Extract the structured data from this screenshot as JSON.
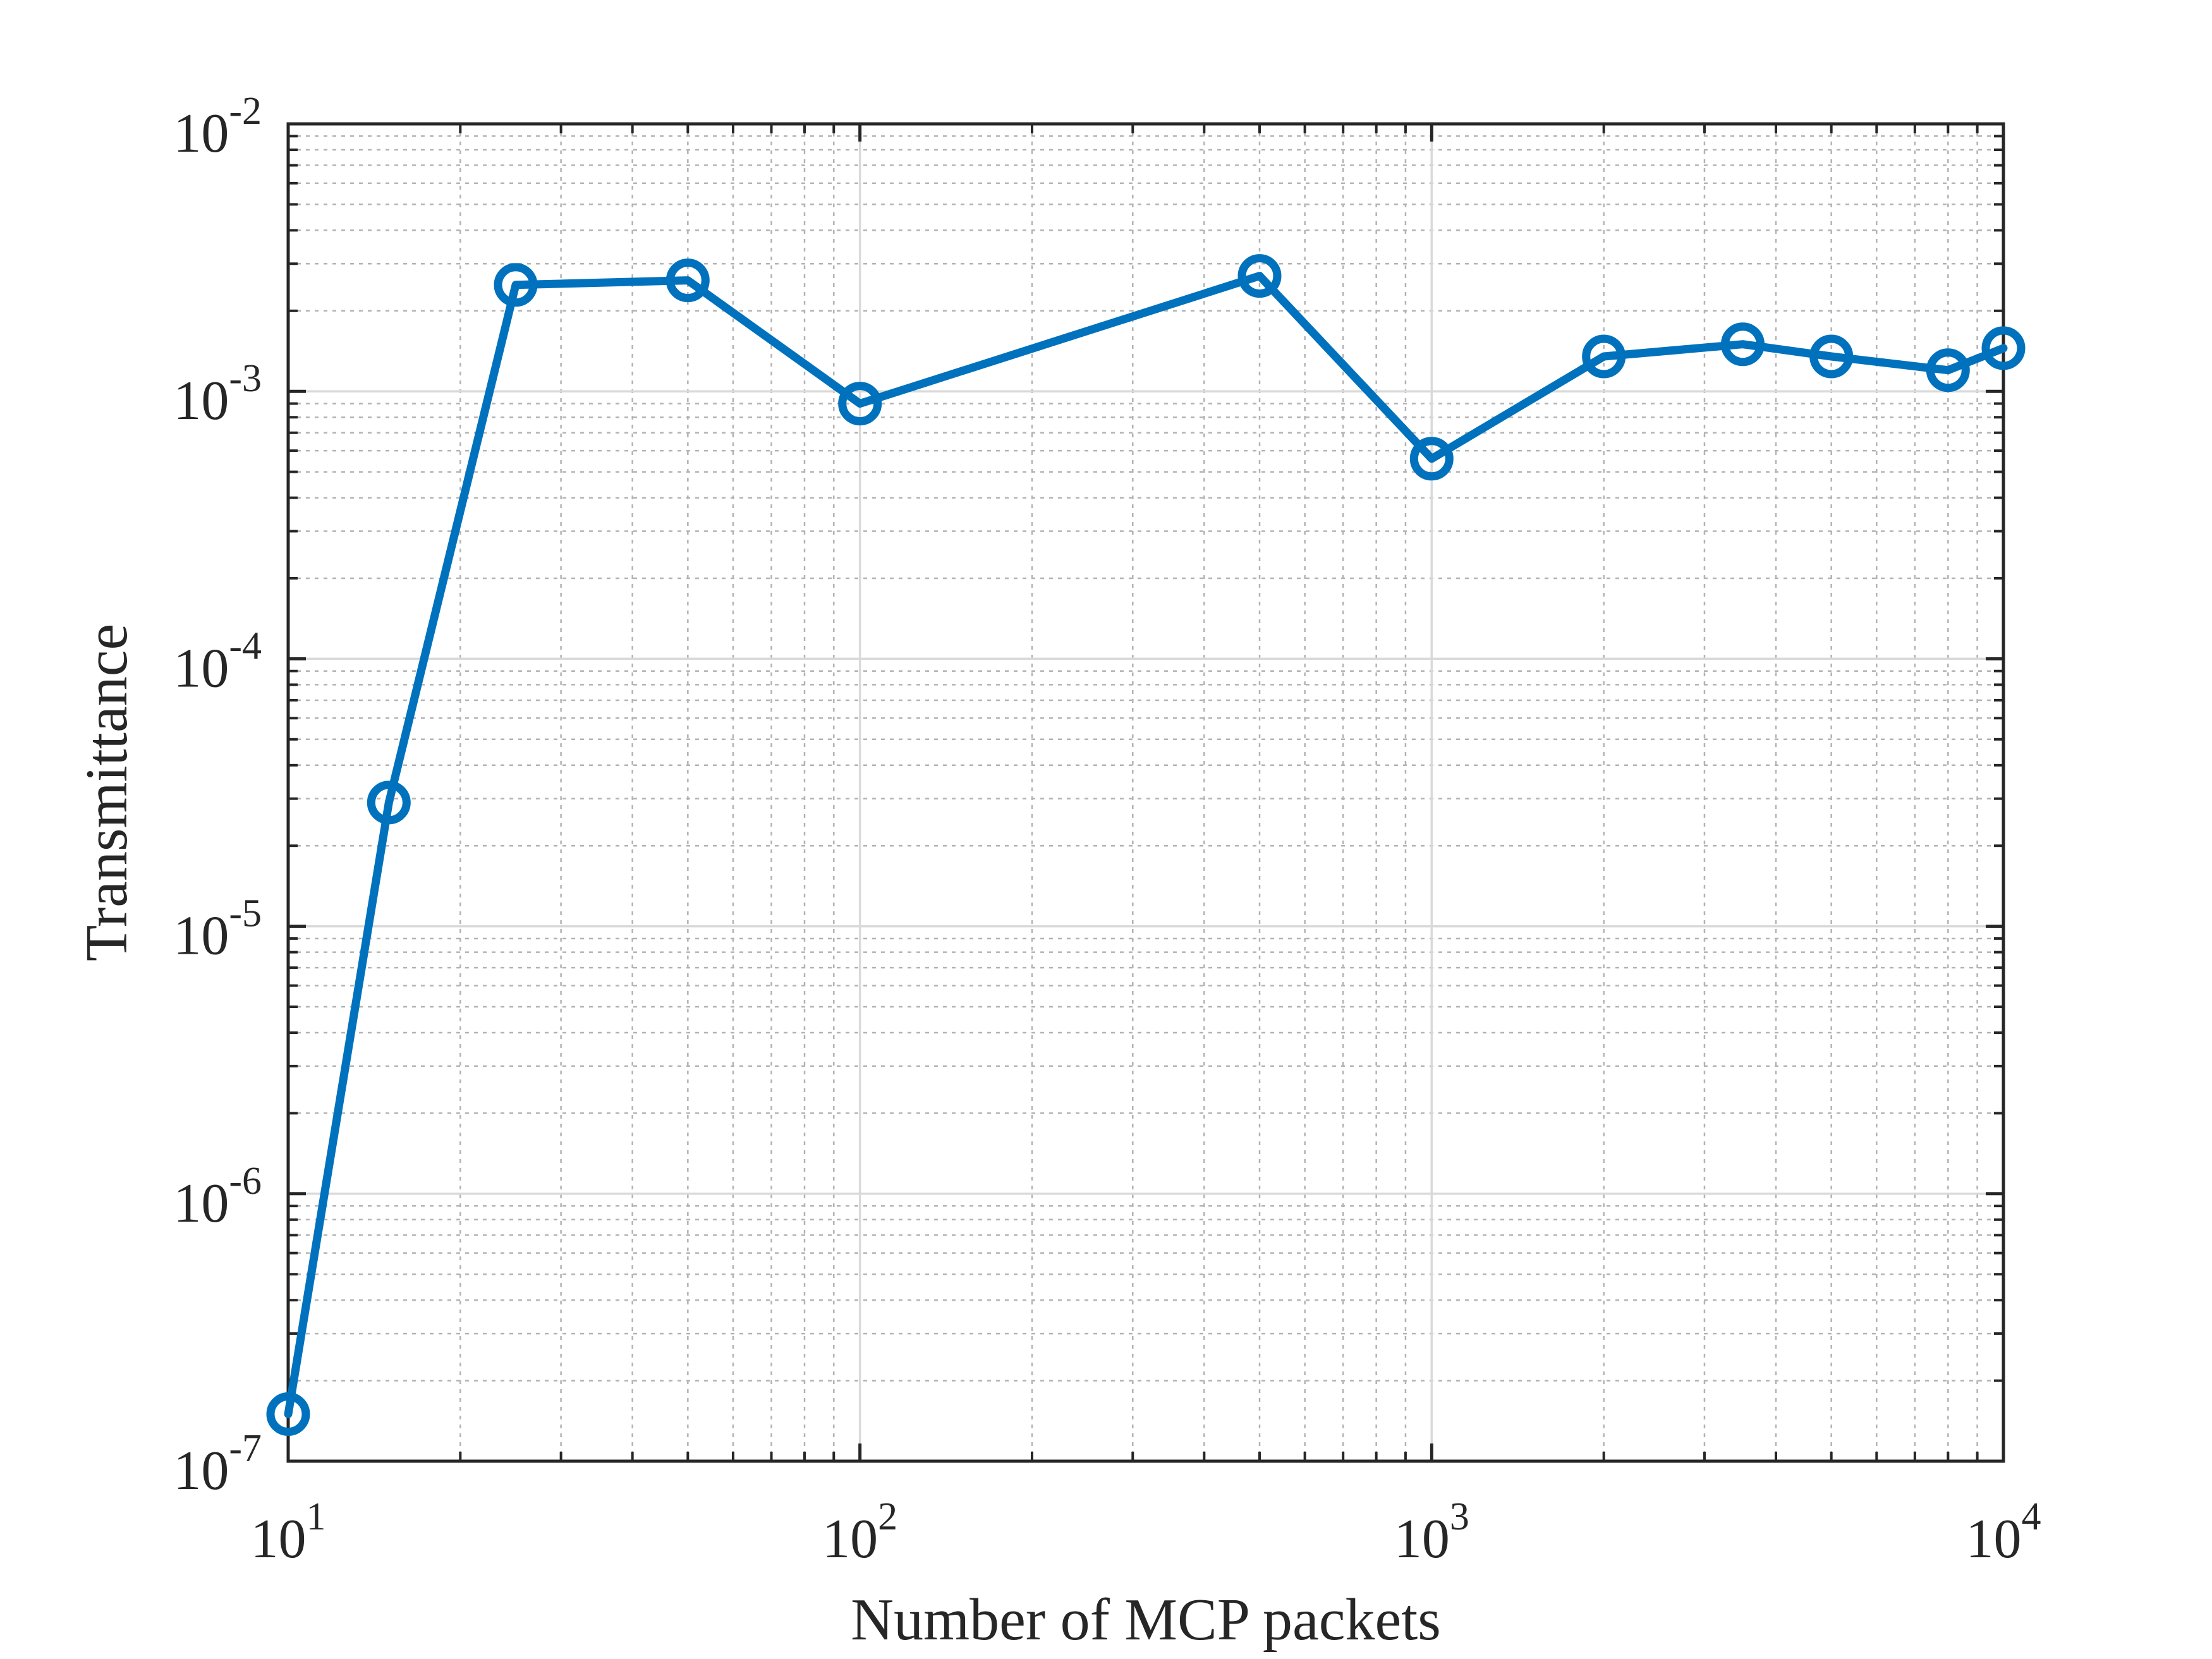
{
  "chart_data": {
    "type": "line",
    "xlabel": "Number of MCP packets",
    "ylabel": "Transmittance",
    "xscale": "log",
    "yscale": "log",
    "xlim": [
      10,
      10000
    ],
    "ylim": [
      1e-07,
      0.01
    ],
    "grid": "major and minor",
    "x_ticks": [
      {
        "base": "10",
        "exp": "1"
      },
      {
        "base": "10",
        "exp": "2"
      },
      {
        "base": "10",
        "exp": "3"
      },
      {
        "base": "10",
        "exp": "4"
      }
    ],
    "y_ticks": [
      {
        "base": "10",
        "exp": "-7"
      },
      {
        "base": "10",
        "exp": "-6"
      },
      {
        "base": "10",
        "exp": "-5"
      },
      {
        "base": "10",
        "exp": "-4"
      },
      {
        "base": "10",
        "exp": "-3"
      },
      {
        "base": "10",
        "exp": "-2"
      }
    ],
    "series": [
      {
        "color": "#0072BD",
        "marker": "circle",
        "x": [
          10,
          15,
          25,
          50,
          100,
          500,
          1000,
          2000,
          3500,
          5000,
          8000,
          10000
        ],
        "y": [
          1.5e-07,
          2.9e-05,
          0.0025,
          0.0026,
          0.0009,
          0.0027,
          0.00056,
          0.00135,
          0.0015,
          0.00135,
          0.0012,
          0.00145
        ]
      }
    ]
  }
}
